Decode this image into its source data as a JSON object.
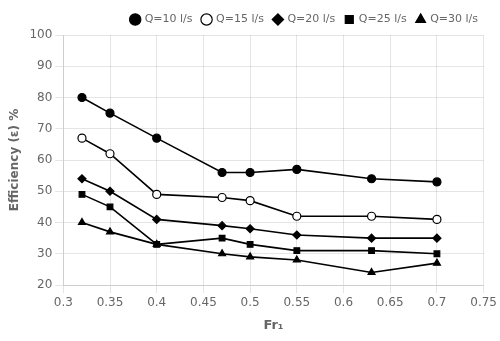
{
  "chart_data": {
    "type": "line",
    "xlabel": "Fr₁",
    "ylabel": "Efficiency (ε) %",
    "x": [
      0.32,
      0.35,
      0.4,
      0.47,
      0.5,
      0.55,
      0.63,
      0.7
    ],
    "series": [
      {
        "name": "Q=10 l/s",
        "values": [
          80,
          75,
          67,
          56,
          56,
          57,
          54,
          53
        ],
        "marker": "circle"
      },
      {
        "name": "Q=15 l/s",
        "values": [
          67,
          62,
          49,
          48,
          47,
          42,
          42,
          41
        ],
        "marker": "open-circle"
      },
      {
        "name": "Q=20 l/s",
        "values": [
          54,
          50,
          41,
          39,
          38,
          36,
          35,
          35
        ],
        "marker": "diamond"
      },
      {
        "name": "Q=25 l/s",
        "values": [
          49,
          45,
          33,
          35,
          33,
          31,
          31,
          30
        ],
        "marker": "square"
      },
      {
        "name": "Q=30 l/s",
        "values": [
          40,
          37,
          33,
          30,
          29,
          28,
          24,
          27
        ],
        "marker": "triangle"
      }
    ],
    "color": "black",
    "xlim": [
      0.3,
      0.75
    ],
    "ylim": [
      20,
      100
    ],
    "xticks": [
      0.3,
      0.35,
      0.4,
      0.45,
      0.5,
      0.55,
      0.6,
      0.65,
      0.7,
      0.75
    ],
    "yticks": [
      20,
      30,
      40,
      50,
      60,
      70,
      80,
      90,
      100
    ],
    "grid": true,
    "legend": "upper right"
  }
}
